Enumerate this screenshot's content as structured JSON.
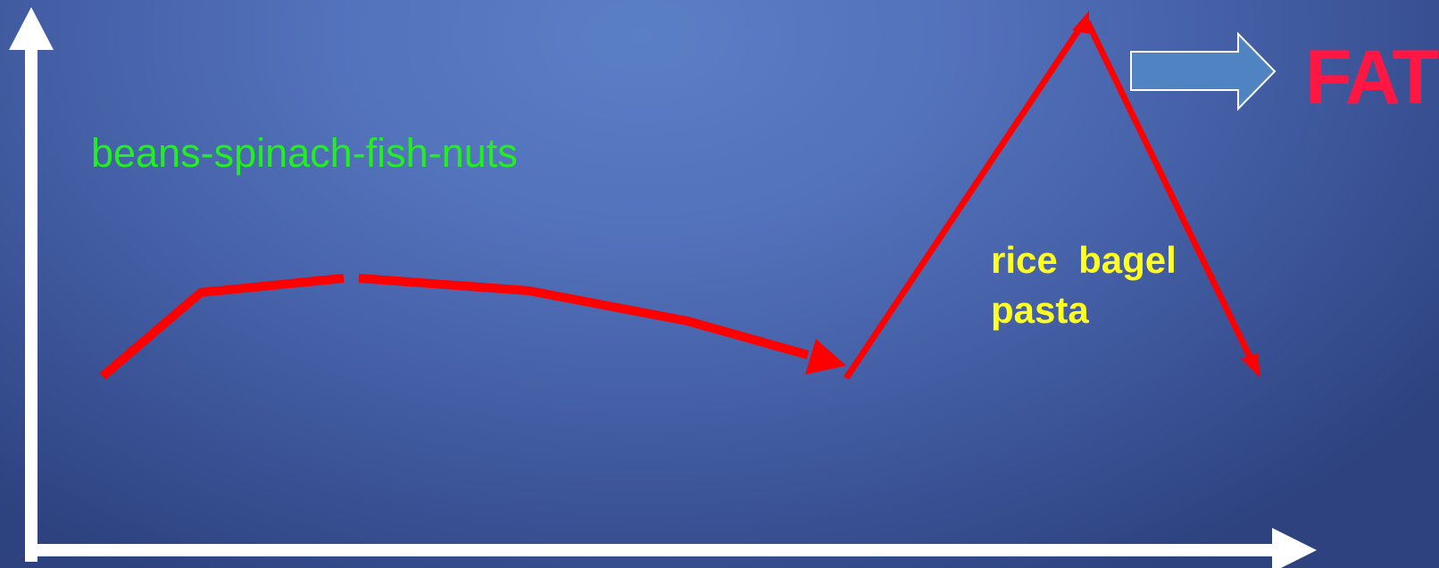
{
  "labels": {
    "foods": "beans-spinach-fish-nuts",
    "carbs": "rice  bagel\npasta",
    "result": "FAT"
  },
  "colors": {
    "background": "#5373bc",
    "axes": "#ffffff",
    "curve": "#ff0000",
    "foods_text": "#22ee22",
    "carbs_text": "#ffff22",
    "result_text": "#ff1744",
    "block_arrow_fill": "#4f83c2"
  },
  "icons": {
    "axes": "axis-arrows",
    "result_pointer": "block-arrow-right"
  }
}
